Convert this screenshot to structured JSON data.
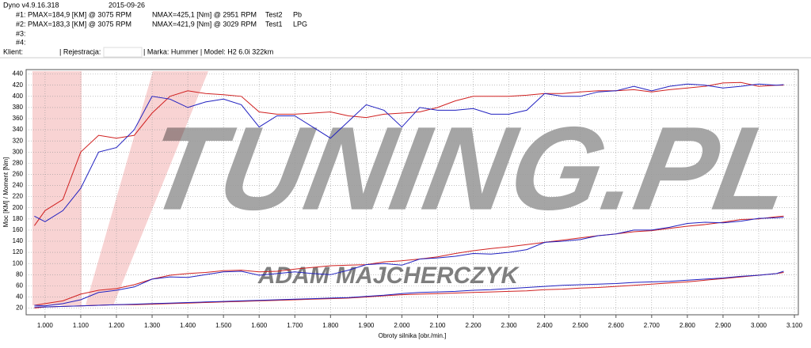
{
  "header": {
    "app": "Dyno v4.9.16.318",
    "date": "2015-09-26",
    "runs": [
      [
        "#1: PMAX=184,9 [KM] @ 3075 RPM",
        "NMAX=425,1 [Nm] @ 2951 RPM",
        "Test2",
        "Pb"
      ],
      [
        "#2: PMAX=183,3 [KM] @ 3075 RPM",
        "NMAX=421,9 [Nm] @ 3029 RPM",
        "Test1",
        "LPG"
      ],
      [
        "#3:"
      ],
      [
        "#4:"
      ]
    ],
    "client": "Klient:",
    "registration": "| Rejestracja:",
    "vehicle": "| Marka: Hummer | Model: H2 6.0i 322km"
  },
  "chart_data": {
    "type": "line",
    "xlabel": "Obroty silnika [obr./min.]",
    "ylabel": "Moc [KM] / Moment [Nm]",
    "watermark": {
      "logo": "TUNING.PL",
      "author": "ADAM MAJCHERCZYK"
    },
    "grid": true,
    "xlim": [
      0.947,
      3.111
    ],
    "ylim": [
      8,
      448
    ],
    "xticks": [
      {
        "value": 1.0,
        "label": "1.000"
      },
      {
        "value": 1.1,
        "label": "1.100"
      },
      {
        "value": 1.2,
        "label": "1.200"
      },
      {
        "value": 1.3,
        "label": "1.300"
      },
      {
        "value": 1.4,
        "label": "1.400"
      },
      {
        "value": 1.5,
        "label": "1.500"
      },
      {
        "value": 1.6,
        "label": "1.600"
      },
      {
        "value": 1.7,
        "label": "1.700"
      },
      {
        "value": 1.8,
        "label": "1.800"
      },
      {
        "value": 1.9,
        "label": "1.900"
      },
      {
        "value": 2.0,
        "label": "2.000"
      },
      {
        "value": 2.1,
        "label": "2.100"
      },
      {
        "value": 2.2,
        "label": "2.200"
      },
      {
        "value": 2.3,
        "label": "2.300"
      },
      {
        "value": 2.4,
        "label": "2.400"
      },
      {
        "value": 2.5,
        "label": "2.500"
      },
      {
        "value": 2.6,
        "label": "2.600"
      },
      {
        "value": 2.7,
        "label": "2.700"
      },
      {
        "value": 2.8,
        "label": "2.800"
      },
      {
        "value": 2.9,
        "label": "2.900"
      },
      {
        "value": 3.0,
        "label": "3.000"
      },
      {
        "value": 3.1,
        "label": "3.100"
      }
    ],
    "yticks": [
      20,
      40,
      60,
      80,
      100,
      120,
      140,
      160,
      180,
      200,
      220,
      240,
      260,
      280,
      300,
      320,
      340,
      360,
      380,
      400,
      420,
      440
    ],
    "x": [
      0.97,
      1.0,
      1.05,
      1.1,
      1.15,
      1.2,
      1.25,
      1.3,
      1.35,
      1.4,
      1.45,
      1.5,
      1.55,
      1.6,
      1.65,
      1.7,
      1.75,
      1.8,
      1.85,
      1.9,
      1.95,
      2.0,
      2.05,
      2.1,
      2.15,
      2.2,
      2.25,
      2.3,
      2.35,
      2.4,
      2.45,
      2.5,
      2.55,
      2.6,
      2.65,
      2.7,
      2.75,
      2.8,
      2.85,
      2.9,
      2.95,
      3.0,
      3.05,
      3.07
    ],
    "series": [
      {
        "color": "#d02020",
        "values": [
          168,
          195,
          215,
          300,
          330,
          325,
          330,
          370,
          400,
          410,
          405,
          403,
          400,
          372,
          368,
          368,
          370,
          372,
          365,
          362,
          368,
          370,
          372,
          380,
          392,
          400,
          400,
          400,
          402,
          405,
          405,
          408,
          410,
          410,
          412,
          408,
          412,
          415,
          418,
          424,
          425,
          418,
          420,
          420
        ]
      },
      {
        "color": "#2020c0",
        "values": [
          185,
          175,
          195,
          235,
          300,
          308,
          340,
          400,
          395,
          380,
          390,
          395,
          385,
          345,
          365,
          365,
          345,
          325,
          355,
          385,
          375,
          345,
          380,
          375,
          375,
          378,
          368,
          368,
          375,
          405,
          400,
          400,
          408,
          410,
          418,
          410,
          418,
          422,
          420,
          415,
          418,
          422,
          420,
          421
        ]
      },
      {
        "color": "#d02020",
        "values": [
          25,
          28,
          33,
          45,
          52,
          55,
          62,
          72,
          79,
          82,
          84,
          87,
          88,
          85,
          86,
          90,
          93,
          96,
          97,
          98,
          103,
          105,
          108,
          112,
          118,
          123,
          127,
          130,
          134,
          138,
          142,
          146,
          150,
          153,
          157,
          159,
          163,
          167,
          170,
          174,
          179,
          180,
          184,
          185
        ]
      },
      {
        "color": "#2020c0",
        "values": [
          25,
          24,
          28,
          35,
          48,
          52,
          58,
          72,
          76,
          75,
          80,
          85,
          86,
          79,
          82,
          85,
          82,
          80,
          88,
          98,
          100,
          97,
          108,
          110,
          113,
          118,
          117,
          120,
          125,
          138,
          140,
          143,
          150,
          153,
          160,
          160,
          165,
          172,
          174,
          173,
          176,
          181,
          182,
          183
        ]
      },
      {
        "color": "#d02020",
        "values": [
          20,
          22,
          23,
          24,
          25,
          26,
          26,
          27,
          28,
          29,
          30,
          31,
          32,
          33,
          34,
          35,
          36,
          37,
          38,
          40,
          42,
          44,
          45,
          46,
          47,
          48,
          49,
          50,
          51,
          53,
          54,
          56,
          57,
          59,
          61,
          63,
          65,
          67,
          70,
          73,
          76,
          79,
          82,
          84
        ]
      },
      {
        "color": "#2020c0",
        "values": [
          22,
          22,
          23,
          24,
          25,
          26,
          27,
          28,
          29,
          30,
          31,
          32,
          33,
          34,
          35,
          36,
          37,
          38,
          39,
          41,
          43,
          46,
          48,
          49,
          50,
          52,
          53,
          55,
          57,
          59,
          61,
          62,
          63,
          64,
          66,
          67,
          68,
          70,
          72,
          74,
          77,
          79,
          82,
          86
        ]
      }
    ]
  }
}
